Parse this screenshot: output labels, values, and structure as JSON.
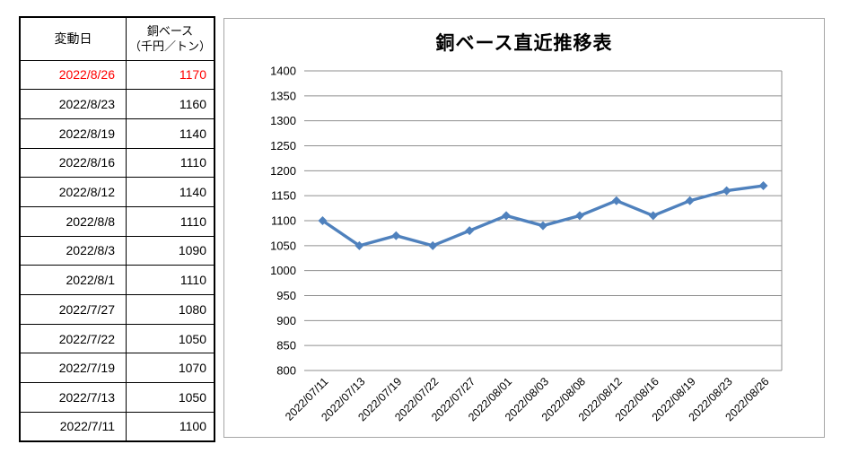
{
  "table": {
    "header": {
      "date_label": "変動日",
      "price_label_line1": "銅ベース",
      "price_label_line2": "（千円／トン）"
    },
    "highlight_color": "#FF0000",
    "rows": [
      {
        "date": "2022/8/26",
        "value": "1170",
        "highlight": true
      },
      {
        "date": "2022/8/23",
        "value": "1160",
        "highlight": false
      },
      {
        "date": "2022/8/19",
        "value": "1140",
        "highlight": false
      },
      {
        "date": "2022/8/16",
        "value": "1110",
        "highlight": false
      },
      {
        "date": "2022/8/12",
        "value": "1140",
        "highlight": false
      },
      {
        "date": "2022/8/8",
        "value": "1110",
        "highlight": false
      },
      {
        "date": "2022/8/3",
        "value": "1090",
        "highlight": false
      },
      {
        "date": "2022/8/1",
        "value": "1110",
        "highlight": false
      },
      {
        "date": "2022/7/27",
        "value": "1080",
        "highlight": false
      },
      {
        "date": "2022/7/22",
        "value": "1050",
        "highlight": false
      },
      {
        "date": "2022/7/19",
        "value": "1070",
        "highlight": false
      },
      {
        "date": "2022/7/13",
        "value": "1050",
        "highlight": false
      },
      {
        "date": "2022/7/11",
        "value": "1100",
        "highlight": false
      }
    ]
  },
  "chart_data": {
    "type": "line",
    "title": "銅ベース直近推移表",
    "categories": [
      "2022/07/11",
      "2022/07/13",
      "2022/07/19",
      "2022/07/22",
      "2022/07/27",
      "2022/08/01",
      "2022/08/03",
      "2022/08/08",
      "2022/08/12",
      "2022/08/16",
      "2022/08/19",
      "2022/08/23",
      "2022/08/26"
    ],
    "values": [
      1100,
      1050,
      1070,
      1050,
      1080,
      1110,
      1090,
      1110,
      1140,
      1110,
      1140,
      1160,
      1170
    ],
    "xlabel": "",
    "ylabel": "",
    "ylim": [
      800,
      1400
    ],
    "ytick_step": 50,
    "grid": "horizontal",
    "legend": "none",
    "marker": "diamond",
    "line_color": "#4F81BD",
    "grid_color": "#8F8F8F",
    "frame_color": "#A6A6A6",
    "tick_label_color": "#000000"
  }
}
